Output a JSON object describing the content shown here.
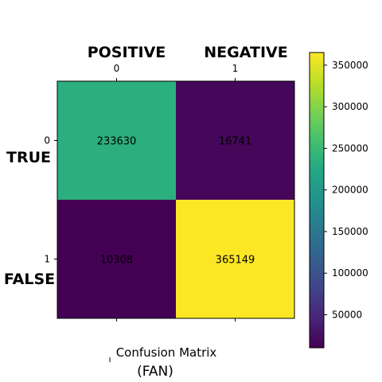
{
  "chart_data": {
    "type": "heatmap",
    "rows": [
      "0",
      "1"
    ],
    "columns": [
      "0",
      "1"
    ],
    "values": [
      [
        233630,
        16741
      ],
      [
        10308,
        365149
      ]
    ],
    "column_headings": [
      "POSITIVE",
      "NEGATIVE"
    ],
    "row_headings": [
      "TRUE",
      "FALSE"
    ],
    "title": "Confusion Matrix",
    "subtitle": "(FAN)",
    "colormap": "viridis",
    "colorbar": {
      "range": [
        10308,
        365149
      ],
      "ticks": [
        50000,
        100000,
        150000,
        200000,
        250000,
        300000,
        350000
      ]
    },
    "grid": false
  }
}
